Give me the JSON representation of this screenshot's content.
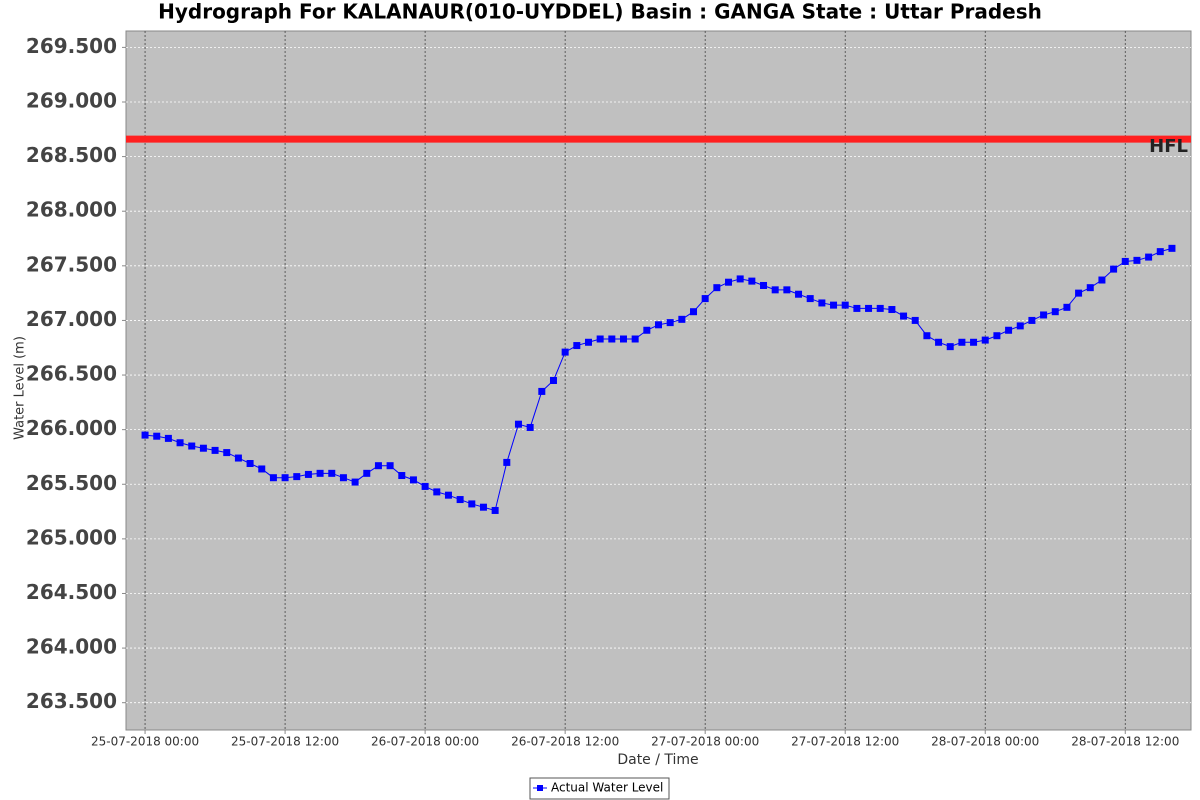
{
  "chart_data": {
    "type": "line",
    "title": "Hydrograph For KALANAUR(010-UYDDEL) Basin : GANGA State : Uttar Pradesh",
    "x_label": "Date / Time",
    "y_label": "Water Level (m)",
    "grid": true,
    "legend": "bottom",
    "xlim": [
      "24-07-2018 22:22",
      "28-07-2018 17:38"
    ],
    "xticks": [
      "25-07-2018 00:00",
      "25-07-2018 12:00",
      "26-07-2018 00:00",
      "26-07-2018 12:00",
      "27-07-2018 00:00",
      "27-07-2018 12:00",
      "28-07-2018 00:00",
      "28-07-2018 12:00"
    ],
    "ylim": [
      263.25,
      269.65
    ],
    "yticks": [
      {
        "value": 263.5,
        "label": "263.500"
      },
      {
        "value": 264,
        "label": "264.000"
      },
      {
        "value": 264.5,
        "label": "264.500"
      },
      {
        "value": 265,
        "label": "265.000"
      },
      {
        "value": 265.5,
        "label": "265.500"
      },
      {
        "value": 266,
        "label": "266.000"
      },
      {
        "value": 266.5,
        "label": "266.500"
      },
      {
        "value": 267,
        "label": "267.000"
      },
      {
        "value": 267.5,
        "label": "267.500"
      },
      {
        "value": 268,
        "label": "268.000"
      },
      {
        "value": 268.5,
        "label": "268.500"
      },
      {
        "value": 269,
        "label": "269.000"
      },
      {
        "value": 269.5,
        "label": "269.500"
      }
    ],
    "reference_line": {
      "label": "HFL",
      "value": 268.66,
      "color": "#ff2020"
    },
    "x": [
      "25-07-2018 00:00",
      "25-07-2018 01:00",
      "25-07-2018 02:00",
      "25-07-2018 03:00",
      "25-07-2018 04:00",
      "25-07-2018 05:00",
      "25-07-2018 06:00",
      "25-07-2018 07:00",
      "25-07-2018 08:00",
      "25-07-2018 09:00",
      "25-07-2018 10:00",
      "25-07-2018 11:00",
      "25-07-2018 12:00",
      "25-07-2018 13:00",
      "25-07-2018 14:00",
      "25-07-2018 15:00",
      "25-07-2018 16:00",
      "25-07-2018 17:00",
      "25-07-2018 18:00",
      "25-07-2018 19:00",
      "25-07-2018 20:00",
      "25-07-2018 21:00",
      "25-07-2018 22:00",
      "25-07-2018 23:00",
      "26-07-2018 00:00",
      "26-07-2018 01:00",
      "26-07-2018 02:00",
      "26-07-2018 03:00",
      "26-07-2018 04:00",
      "26-07-2018 05:00",
      "26-07-2018 06:00",
      "26-07-2018 07:00",
      "26-07-2018 08:00",
      "26-07-2018 09:00",
      "26-07-2018 10:00",
      "26-07-2018 11:00",
      "26-07-2018 12:00",
      "26-07-2018 13:00",
      "26-07-2018 14:00",
      "26-07-2018 15:00",
      "26-07-2018 16:00",
      "26-07-2018 17:00",
      "26-07-2018 18:00",
      "26-07-2018 19:00",
      "26-07-2018 20:00",
      "26-07-2018 21:00",
      "26-07-2018 22:00",
      "26-07-2018 23:00",
      "27-07-2018 00:00",
      "27-07-2018 01:00",
      "27-07-2018 02:00",
      "27-07-2018 03:00",
      "27-07-2018 04:00",
      "27-07-2018 05:00",
      "27-07-2018 06:00",
      "27-07-2018 07:00",
      "27-07-2018 08:00",
      "27-07-2018 09:00",
      "27-07-2018 10:00",
      "27-07-2018 11:00",
      "27-07-2018 12:00",
      "27-07-2018 13:00",
      "27-07-2018 14:00",
      "27-07-2018 15:00",
      "27-07-2018 16:00",
      "27-07-2018 17:00",
      "27-07-2018 18:00",
      "27-07-2018 19:00",
      "27-07-2018 20:00",
      "27-07-2018 21:00",
      "27-07-2018 22:00",
      "27-07-2018 23:00",
      "28-07-2018 00:00",
      "28-07-2018 01:00",
      "28-07-2018 02:00",
      "28-07-2018 03:00",
      "28-07-2018 04:00",
      "28-07-2018 05:00",
      "28-07-2018 06:00",
      "28-07-2018 07:00",
      "28-07-2018 08:00",
      "28-07-2018 09:00",
      "28-07-2018 10:00",
      "28-07-2018 11:00",
      "28-07-2018 12:00",
      "28-07-2018 13:00",
      "28-07-2018 14:00",
      "28-07-2018 15:00",
      "28-07-2018 16:00"
    ],
    "series": [
      {
        "name": "Actual Water Level",
        "color": "#0000ff",
        "values": [
          265.95,
          265.94,
          265.92,
          265.88,
          265.85,
          265.83,
          265.81,
          265.79,
          265.74,
          265.69,
          265.64,
          265.56,
          265.56,
          265.57,
          265.59,
          265.6,
          265.6,
          265.56,
          265.52,
          265.6,
          265.67,
          265.67,
          265.58,
          265.54,
          265.48,
          265.43,
          265.4,
          265.36,
          265.32,
          265.29,
          265.26,
          265.7,
          266.05,
          266.02,
          266.35,
          266.45,
          266.71,
          266.77,
          266.8,
          266.83,
          266.83,
          266.83,
          266.83,
          266.91,
          266.96,
          266.98,
          267.01,
          267.08,
          267.2,
          267.3,
          267.35,
          267.38,
          267.36,
          267.32,
          267.28,
          267.28,
          267.24,
          267.2,
          267.16,
          267.14,
          267.14,
          267.11,
          267.11,
          267.11,
          267.1,
          267.04,
          267.0,
          266.86,
          266.8,
          266.76,
          266.8,
          266.8,
          266.82,
          266.86,
          266.91,
          266.95,
          267.0,
          267.05,
          267.08,
          267.12,
          267.25,
          267.3,
          267.37,
          267.47,
          267.54,
          267.55,
          267.58,
          267.63,
          267.66
        ]
      }
    ]
  }
}
